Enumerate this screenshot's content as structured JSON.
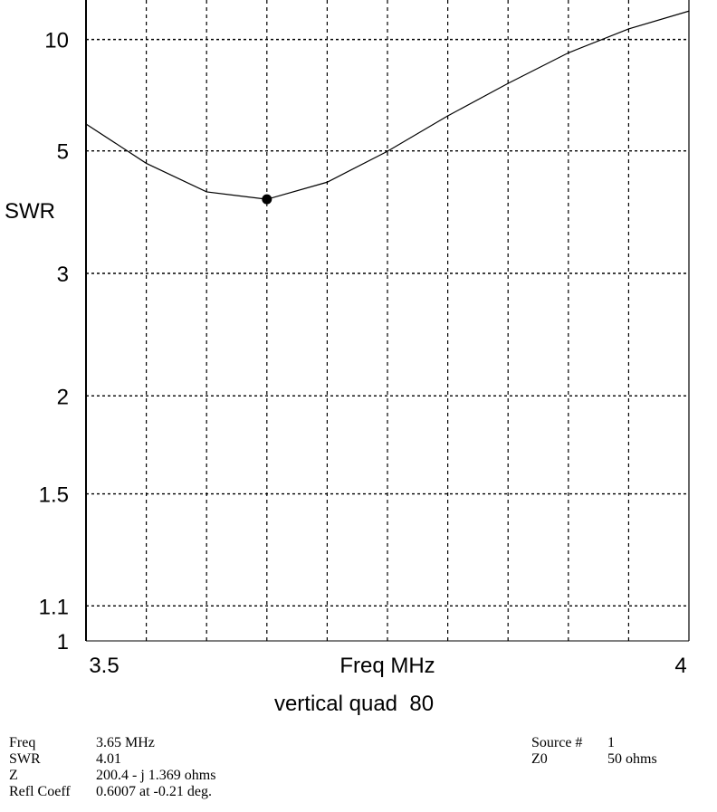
{
  "chart_data": {
    "type": "line",
    "title": "vertical quad  80",
    "xlabel": "Freq MHz",
    "ylabel": "SWR",
    "xlim": [
      3.5,
      4.0
    ],
    "ylim": [
      1,
      14.6
    ],
    "y_scale": "reflection-coefficient",
    "grid": true,
    "x_tick_labels": [
      "3.5",
      "4"
    ],
    "y_ticks": [
      10,
      5,
      3,
      2,
      1.5,
      1.1,
      1
    ],
    "y_tick_labels": [
      "10",
      "5",
      "3",
      "2",
      "1.5",
      "1.1",
      "1"
    ],
    "series": [
      {
        "name": "SWR",
        "x": [
          3.5,
          3.55,
          3.6,
          3.65,
          3.7,
          3.75,
          3.8,
          3.85,
          3.9,
          3.95,
          4.0
        ],
        "values": [
          5.74,
          4.71,
          4.14,
          4.01,
          4.32,
          4.99,
          6.0,
          7.28,
          9.0,
          10.95,
          12.97
        ]
      }
    ],
    "marker": {
      "x": 3.65,
      "y": 4.01
    }
  },
  "info": {
    "left": [
      {
        "key": "Freq",
        "value": "3.65 MHz"
      },
      {
        "key": "SWR",
        "value": "4.01"
      },
      {
        "key": "Z",
        "value": "200.4 - j 1.369 ohms"
      },
      {
        "key": "Refl Coeff",
        "value": "0.6007 at -0.21 deg."
      }
    ],
    "right": [
      {
        "key": "Source #",
        "value": "1"
      },
      {
        "key": "Z0",
        "value": "50 ohms"
      }
    ]
  }
}
